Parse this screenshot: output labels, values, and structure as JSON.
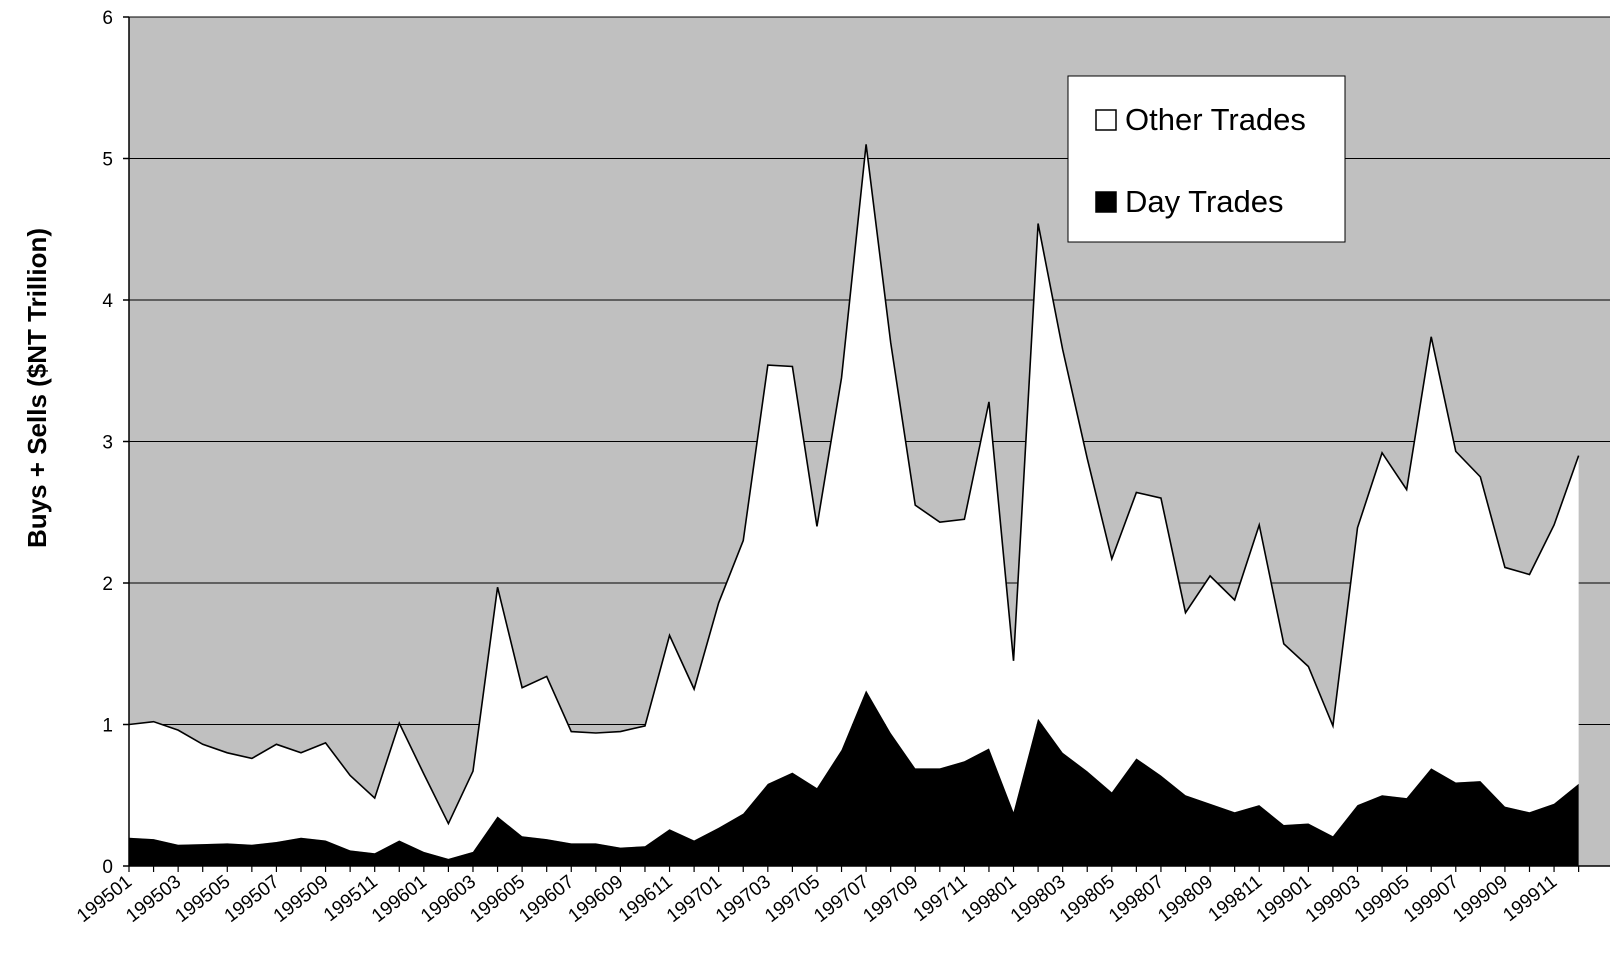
{
  "chart_data": {
    "type": "area",
    "stacked": true,
    "xlabel": "",
    "ylabel": "Buys + Sells ($NT Trillion)",
    "ylim": [
      0,
      6
    ],
    "yticks": [
      "0",
      "1",
      "2",
      "3",
      "4",
      "5",
      "6"
    ],
    "grid": "horizontal",
    "legend_position": "top-right",
    "x": [
      "199501",
      "199502",
      "199503",
      "199504",
      "199505",
      "199506",
      "199507",
      "199508",
      "199509",
      "199510",
      "199511",
      "199512",
      "199601",
      "199602",
      "199603",
      "199604",
      "199605",
      "199606",
      "199607",
      "199608",
      "199609",
      "199610",
      "199611",
      "199612",
      "199701",
      "199702",
      "199703",
      "199704",
      "199705",
      "199706",
      "199707",
      "199708",
      "199709",
      "199710",
      "199711",
      "199712",
      "199801",
      "199802",
      "199803",
      "199804",
      "199805",
      "199806",
      "199807",
      "199808",
      "199809",
      "199810",
      "199811",
      "199812",
      "199901",
      "199902",
      "199903",
      "199904",
      "199905",
      "199906",
      "199907",
      "199908",
      "199909",
      "199910",
      "199911",
      "199912"
    ],
    "xtick_labels": [
      "199501",
      "199503",
      "199505",
      "199507",
      "199509",
      "199511",
      "199601",
      "199603",
      "199605",
      "199607",
      "199609",
      "199611",
      "199701",
      "199703",
      "199705",
      "199707",
      "199709",
      "199711",
      "199801",
      "199803",
      "199805",
      "199807",
      "199809",
      "199811",
      "199901",
      "199903",
      "199905",
      "199907",
      "199909",
      "199911"
    ],
    "series": [
      {
        "name": "Day Trades",
        "color": "#000000",
        "values": [
          0.2,
          0.19,
          0.15,
          0.155,
          0.16,
          0.15,
          0.17,
          0.2,
          0.18,
          0.11,
          0.09,
          0.18,
          0.1,
          0.05,
          0.1,
          0.35,
          0.21,
          0.19,
          0.16,
          0.16,
          0.13,
          0.14,
          0.26,
          0.18,
          0.27,
          0.37,
          0.58,
          0.66,
          0.55,
          0.82,
          1.24,
          0.94,
          0.69,
          0.69,
          0.74,
          0.83,
          0.38,
          1.04,
          0.8,
          0.67,
          0.52,
          0.76,
          0.64,
          0.5,
          0.44,
          0.38,
          0.43,
          0.29,
          0.3,
          0.21,
          0.43,
          0.5,
          0.48,
          0.69,
          0.59,
          0.6,
          0.42,
          0.38,
          0.44,
          0.58
        ]
      },
      {
        "name": "Other Trades",
        "color": "#ffffff",
        "values": [
          0.8,
          0.83,
          0.81,
          0.705,
          0.64,
          0.61,
          0.69,
          0.6,
          0.69,
          0.53,
          0.39,
          0.83,
          0.55,
          0.25,
          0.57,
          1.62,
          1.05,
          1.15,
          0.79,
          0.78,
          0.82,
          0.85,
          1.37,
          1.07,
          1.59,
          1.93,
          2.96,
          2.87,
          1.85,
          2.63,
          3.86,
          2.76,
          1.86,
          1.74,
          1.71,
          2.45,
          1.07,
          3.5,
          2.85,
          2.21,
          1.65,
          1.88,
          1.96,
          1.29,
          1.61,
          1.5,
          1.98,
          1.28,
          1.11,
          0.78,
          1.96,
          2.42,
          2.18,
          3.05,
          2.34,
          2.15,
          1.69,
          1.68,
          1.97,
          2.32
        ]
      }
    ]
  },
  "legend": {
    "items": [
      {
        "label": "Other Trades",
        "swatch": "#ffffff"
      },
      {
        "label": "Day Trades",
        "swatch": "#000000"
      }
    ]
  },
  "colors": {
    "plot_background": "#c0c0c0",
    "gridline": "#000000"
  }
}
